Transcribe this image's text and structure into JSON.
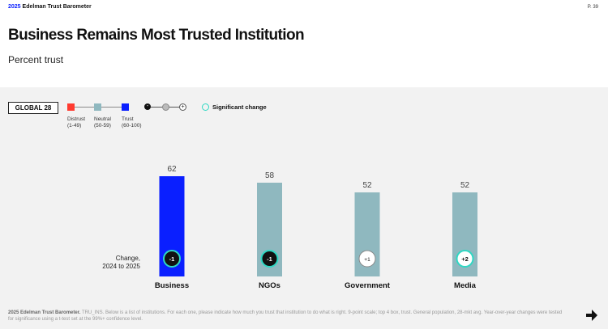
{
  "header": {
    "year": "2025",
    "brand": "Edelman Trust Barometer",
    "page": "P. 39"
  },
  "title": "Business Remains Most Trusted Institution",
  "subtitle": "Percent trust",
  "legend": {
    "region": "GLOBAL 28",
    "categories": [
      {
        "label": "Distrust",
        "range": "(1-49)",
        "color": "#ff3b30"
      },
      {
        "label": "Neutral",
        "range": "(50-59)",
        "color": "#8fb8bf"
      },
      {
        "label": "Trust",
        "range": "(60-100)",
        "color": "#0a1fff"
      }
    ],
    "scale_minus": "-",
    "scale_plus": "+",
    "significant_label": "Significant change"
  },
  "change_label": "Change,\n2024 to 2025",
  "chart_data": {
    "type": "bar",
    "title": "Business Remains Most Trusted Institution",
    "ylabel": "Percent trust",
    "ylim": [
      0,
      100
    ],
    "categories": [
      "Business",
      "NGOs",
      "Government",
      "Media"
    ],
    "values": [
      62,
      58,
      52,
      52
    ],
    "colors": [
      "#0a1fff",
      "#8fb8bf",
      "#8fb8bf",
      "#8fb8bf"
    ],
    "changes": [
      "-1",
      "-1",
      "+1",
      "+2"
    ],
    "change_significant": [
      true,
      true,
      false,
      true
    ],
    "change_style": [
      "dark",
      "dark",
      "light",
      "light"
    ]
  },
  "footnote": {
    "source": "2025 Edelman Trust Barometer.",
    "text": "TRU_INS. Below is a list of institutions. For each one, please indicate how much you trust that institution to do what is right. 9-point scale; top 4 box, trust. General population, 28-mkt avg. Year-over-year changes were tested for significance using a t-test set at the 99%+ confidence level."
  }
}
